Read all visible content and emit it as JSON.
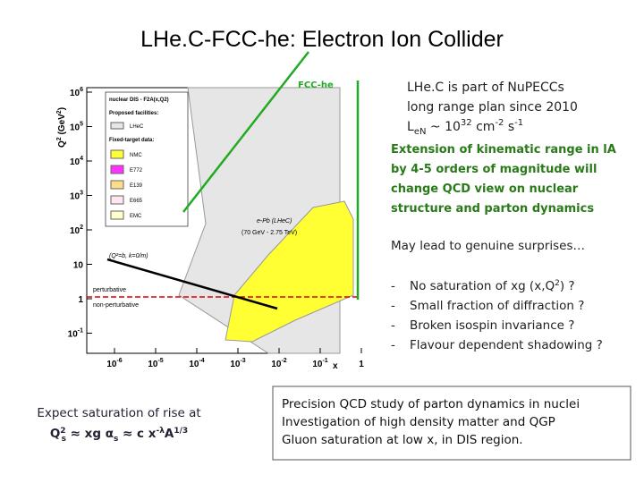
{
  "title": "LHe.C-FCC-he: Electron Ion Collider",
  "fcc_label": "FCC-he",
  "plot": {
    "y_label": [
      "Q",
      "2",
      " (GeV",
      "2",
      ")"
    ],
    "y_ticks": [
      {
        "base": "10",
        "exp": "6"
      },
      {
        "base": "10",
        "exp": "5"
      },
      {
        "base": "10",
        "exp": "4"
      },
      {
        "base": "10",
        "exp": "3"
      },
      {
        "base": "10",
        "exp": "2"
      },
      {
        "base": "10",
        "exp": ""
      },
      {
        "base": "1",
        "exp": ""
      },
      {
        "base": "10",
        "exp": "-1"
      }
    ],
    "x_ticks": [
      {
        "base": "10",
        "exp": "-6"
      },
      {
        "base": "10",
        "exp": "-5"
      },
      {
        "base": "10",
        "exp": "-4"
      },
      {
        "base": "10",
        "exp": "-3"
      },
      {
        "base": "10",
        "exp": "-2"
      },
      {
        "base": "10",
        "exp": "-1"
      },
      {
        "base": "1",
        "exp": ""
      }
    ],
    "x_label": "x",
    "legend": {
      "title": "nuclear DIS - F2A(x,Q2)",
      "proposed": "Proposed facilities:",
      "lhec": "LHeC",
      "fixed": "Fixed-target data:",
      "items": [
        "NMC",
        "E772",
        "E139",
        "E665",
        "EMC"
      ]
    },
    "epb": "e-Pb (LHeC)",
    "energy": "(70 GeV - 2.75 TeV)",
    "perturbative": "perturbative",
    "non_perturbative": "non-perturbative",
    "saturation_curve": "(Q²=b, k=0/m)"
  },
  "intro": {
    "line1": "LHe.C is part of NuPECCs",
    "line2": "long range plan since 2010",
    "lumi": [
      "L",
      "eN",
      " ~ 10",
      "32",
      " cm",
      "-2",
      " s",
      "-1"
    ]
  },
  "extension": [
    "Extension of kinematic range in lA",
    "by 4-5 orders of magnitude will",
    "change QCD view on nuclear",
    "structure and parton dynamics"
  ],
  "surprises": "May lead to genuine surprises…",
  "list": [
    [
      "No saturation of xg (x,Q",
      "2",
      ") ?"
    ],
    [
      "Small fraction of diffraction ?"
    ],
    [
      "Broken isospin invariance ?"
    ],
    [
      "Flavour dependent shadowing ?"
    ]
  ],
  "list_marker": "-",
  "expect": {
    "line1": "Expect saturation of rise at",
    "line2": [
      "Q",
      "2",
      "s",
      " ≈ xg α",
      "s",
      " ≈ c x",
      "-λ",
      "A",
      "1/3"
    ]
  },
  "precision": [
    "Precision QCD study of parton dynamics in nuclei",
    "Investigation of high density matter and QGP",
    "Gluon saturation at low x, in DIS region."
  ]
}
